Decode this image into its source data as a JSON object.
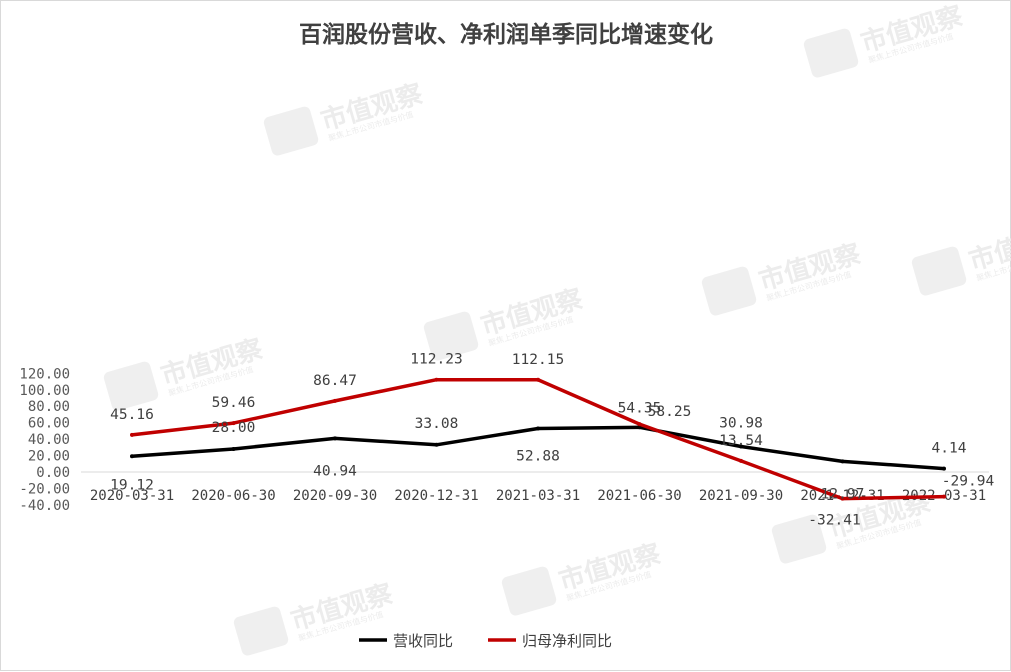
{
  "chart_data": {
    "type": "line",
    "title": "百润股份营收、净利润单季同比增速变化",
    "categories": [
      "2020-03-31",
      "2020-06-30",
      "2020-09-30",
      "2020-12-31",
      "2021-03-31",
      "2021-06-30",
      "2021-09-30",
      "2021-12-31",
      "2022-03-31"
    ],
    "ylim": [
      -40,
      120
    ],
    "yticks": [
      "-40.00",
      "-20.00",
      "0.00",
      "20.00",
      "40.00",
      "60.00",
      "80.00",
      "100.00",
      "120.00"
    ],
    "grid": false,
    "legend_position": "bottom",
    "series": [
      {
        "name": "营收同比",
        "color": "#000000",
        "values": [
          19.12,
          28.0,
          40.94,
          33.08,
          52.88,
          54.35,
          30.98,
          12.97,
          4.14
        ],
        "labels": [
          "19.12",
          "28.00",
          "40.94",
          "33.08",
          "52.88",
          "54.35",
          "30.98",
          "12.97",
          "4.14"
        ]
      },
      {
        "name": "归母净利同比",
        "color": "#c00000",
        "values": [
          45.16,
          59.46,
          86.47,
          112.23,
          112.15,
          58.25,
          13.54,
          -32.41,
          -29.94
        ],
        "labels": [
          "45.16",
          "59.46",
          "86.47",
          "112.23",
          "112.15",
          "58.25",
          "13.54",
          "-32.41",
          "-29.94"
        ]
      }
    ]
  },
  "watermark": {
    "text": "市值观察",
    "subtext": "聚焦上市公司市值与价值"
  }
}
